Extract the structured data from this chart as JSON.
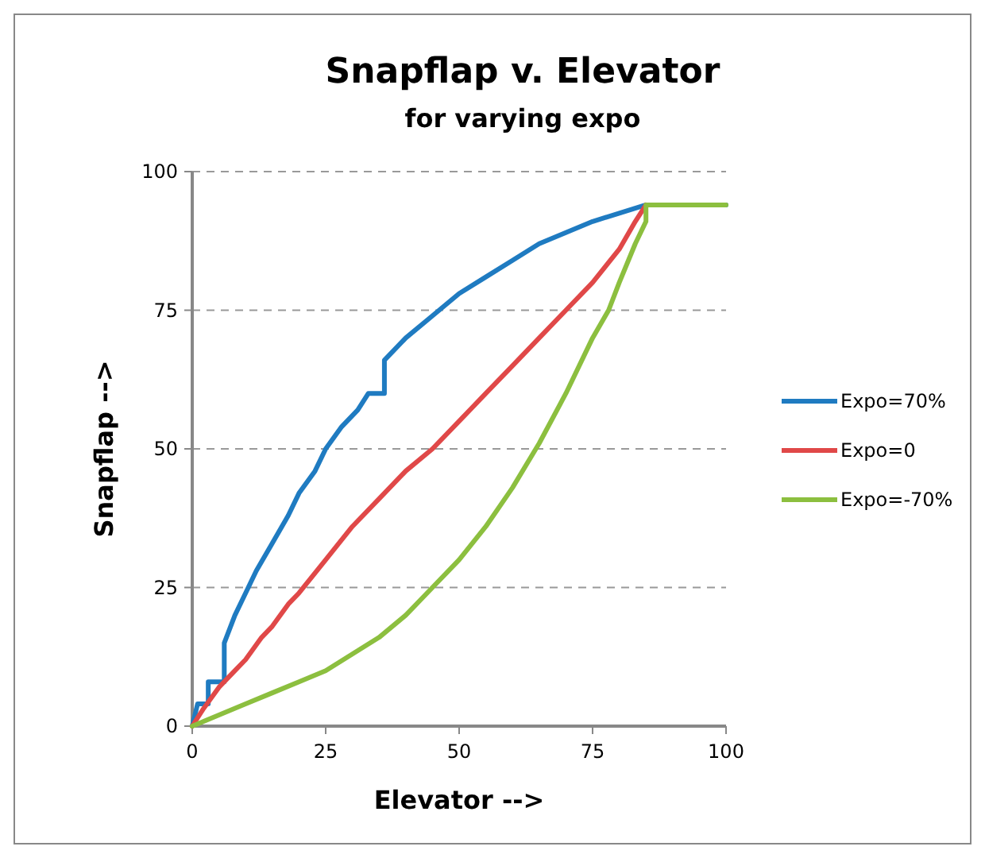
{
  "chart_data": {
    "type": "line",
    "title": "Snapflap v. Elevator",
    "subtitle": "for varying expo",
    "xlabel": "Elevator  -->",
    "ylabel": "Snapflap -->",
    "xlim": [
      0,
      100
    ],
    "xticks": [
      0,
      25,
      50,
      75,
      100
    ],
    "ylim": [
      0,
      100
    ],
    "yticks": [
      0,
      25,
      50,
      75,
      100
    ],
    "grid": "y",
    "legend": "right",
    "line_style": "solid",
    "series": [
      {
        "name": "Expo=70%",
        "color": "#1f7bc1",
        "x": [
          0,
          1,
          3,
          3,
          6,
          6,
          8,
          10,
          12,
          15,
          18,
          20,
          23,
          25,
          28,
          31,
          33,
          36,
          36,
          40,
          45,
          50,
          55,
          60,
          65,
          70,
          75,
          80,
          85,
          100
        ],
        "values": [
          0,
          4,
          4,
          8,
          8,
          15,
          20,
          24,
          28,
          33,
          38,
          42,
          46,
          50,
          54,
          57,
          60,
          60,
          66,
          70,
          74,
          78,
          81,
          84,
          87,
          89,
          91,
          92.5,
          94,
          94
        ]
      },
      {
        "name": "Expo=0",
        "color": "#e04848",
        "x": [
          0,
          2,
          5,
          8,
          10,
          13,
          15,
          18,
          20,
          25,
          30,
          35,
          40,
          45,
          50,
          55,
          60,
          65,
          70,
          75,
          80,
          83,
          85
        ],
        "values": [
          0,
          3,
          7,
          10,
          12,
          16,
          18,
          22,
          24,
          30,
          36,
          41,
          46,
          50,
          55,
          60,
          65,
          70,
          75,
          80,
          86,
          91,
          94
        ]
      },
      {
        "name": "Expo=-70%",
        "color": "#8cbf3f",
        "x": [
          0,
          5,
          10,
          15,
          20,
          25,
          30,
          35,
          40,
          45,
          50,
          55,
          60,
          65,
          70,
          75,
          78,
          80,
          83,
          85,
          85,
          100
        ],
        "values": [
          0,
          2,
          4,
          6,
          8,
          10,
          13,
          16,
          20,
          25,
          30,
          36,
          43,
          51,
          60,
          70,
          75,
          80,
          87,
          91,
          94,
          94
        ]
      }
    ]
  }
}
